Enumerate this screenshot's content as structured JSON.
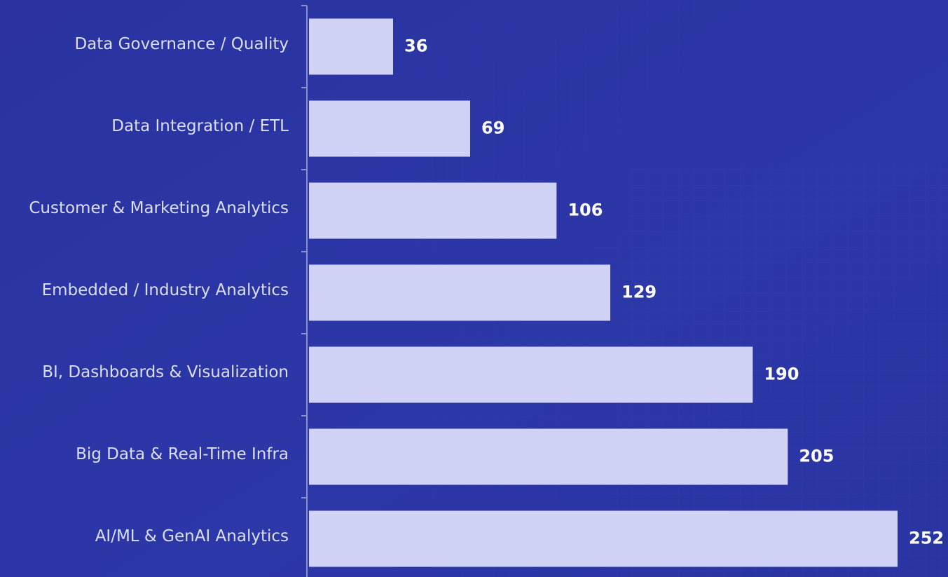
{
  "chart_data": {
    "type": "bar",
    "orientation": "horizontal",
    "categories": [
      "Data Governance / Quality",
      "Data Integration / ETL",
      "Customer & Marketing Analytics",
      "Embedded / Industry Analytics",
      "BI, Dashboards & Visualization",
      "Big Data & Real-Time Infra",
      "AI/ML & GenAI Analytics"
    ],
    "values": [
      36,
      69,
      106,
      129,
      190,
      205,
      252
    ],
    "color": "#d0d3f5"
  }
}
